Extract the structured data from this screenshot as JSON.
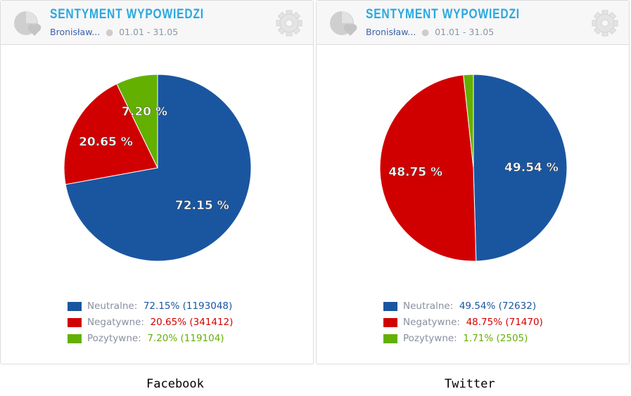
{
  "colors": {
    "neutral": "#1a56a0",
    "negative": "#d10000",
    "positive": "#63b000"
  },
  "panels": [
    {
      "title": "SENTYMENT WYPOWIEDZI",
      "who": "Bronisław...",
      "dates": "01.01 - 31.05",
      "caption": "Facebook",
      "chart_data": {
        "type": "pie",
        "slices": [
          {
            "label": "Neutralne:",
            "value": 72.15,
            "count": 1193048,
            "pct_label": "72.15 %",
            "legend_value": "72.15% (1193048)"
          },
          {
            "label": "Negatywne:",
            "value": 20.65,
            "count": 341412,
            "pct_label": "20.65 %",
            "legend_value": "20.65% (341412)"
          },
          {
            "label": "Pozytywne:",
            "value": 7.2,
            "count": 119104,
            "pct_label": "7.20 %",
            "legend_value": "7.20% (119104)"
          }
        ]
      }
    },
    {
      "title": "SENTYMENT WYPOWIEDZI",
      "who": "Bronisław...",
      "dates": "01.01 - 31.05",
      "caption": "Twitter",
      "chart_data": {
        "type": "pie",
        "slices": [
          {
            "label": "Neutralne:",
            "value": 49.54,
            "count": 72632,
            "pct_label": "49.54 %",
            "legend_value": "49.54% (72632)"
          },
          {
            "label": "Negatywne:",
            "value": 48.75,
            "count": 71470,
            "pct_label": "48.75 %",
            "legend_value": "48.75% (71470)"
          },
          {
            "label": "Pozytywne:",
            "value": 1.71,
            "count": 2505,
            "pct_label": "",
            "legend_value": "1.71% (2505)"
          }
        ]
      }
    }
  ]
}
